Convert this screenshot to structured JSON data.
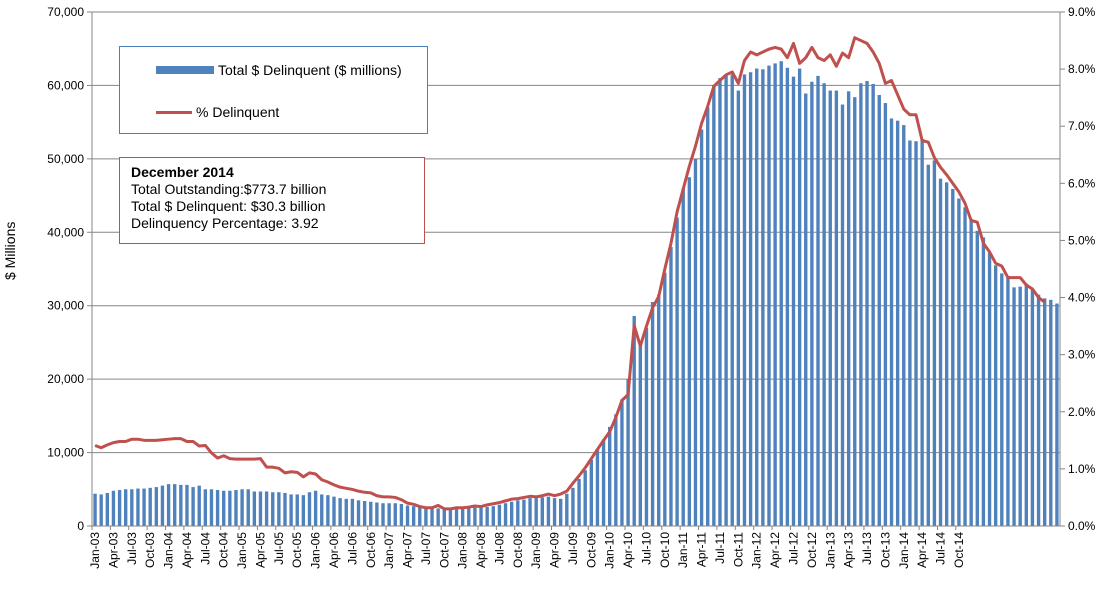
{
  "chart_data": {
    "type": "bar-line combo",
    "ylabel": "$ Millions",
    "ylim": [
      0,
      70000
    ],
    "y2lim": [
      0,
      9.0
    ],
    "yticks": [
      "0",
      "10,000",
      "20,000",
      "30,000",
      "40,000",
      "50,000",
      "60,000",
      "70,000"
    ],
    "y2ticks": [
      "0.0%",
      "1.0%",
      "2.0%",
      "3.0%",
      "4.0%",
      "5.0%",
      "6.0%",
      "7.0%",
      "8.0%",
      "9.0%"
    ],
    "xticks": [
      "Jan-03",
      "Apr-03",
      "Jul-03",
      "Oct-03",
      "Jan-04",
      "Apr-04",
      "Jul-04",
      "Oct-04",
      "Jan-05",
      "Apr-05",
      "Jul-05",
      "Oct-05",
      "Jan-06",
      "Apr-06",
      "Jul-06",
      "Oct-06",
      "Jan-07",
      "Apr-07",
      "Jul-07",
      "Oct-07",
      "Jan-08",
      "Apr-08",
      "Jul-08",
      "Oct-08",
      "Jan-09",
      "Apr-09",
      "Jul-09",
      "Oct-09",
      "Jan-10",
      "Apr-10",
      "Jul-10",
      "Oct-10",
      "Jan-11",
      "Apr-11",
      "Jul-11",
      "Oct-11",
      "Jan-12",
      "Apr-12",
      "Jul-12",
      "Oct-12",
      "Jan-13",
      "Apr-13",
      "Jul-13",
      "Oct-13",
      "Jan-14",
      "Apr-14",
      "Jul-14",
      "Oct-14"
    ],
    "x_start": "Jan-03",
    "grid": true,
    "series": [
      {
        "name": "Total $ Delinquent ($ millions)",
        "type": "bar",
        "axis": "left",
        "color": "#4f81bd",
        "values": [
          4400,
          4300,
          4500,
          4800,
          4900,
          5000,
          5000,
          5100,
          5100,
          5200,
          5300,
          5500,
          5700,
          5700,
          5600,
          5600,
          5300,
          5500,
          5000,
          5000,
          4900,
          4800,
          4800,
          4900,
          5000,
          5000,
          4700,
          4700,
          4700,
          4600,
          4600,
          4500,
          4300,
          4300,
          4200,
          4600,
          4800,
          4300,
          4200,
          4000,
          3800,
          3700,
          3700,
          3500,
          3400,
          3300,
          3200,
          3100,
          3100,
          3100,
          3000,
          2800,
          2700,
          2600,
          2500,
          2400,
          2400,
          2400,
          2400,
          2500,
          2400,
          2400,
          2500,
          2500,
          2600,
          2700,
          2900,
          3100,
          3300,
          3500,
          3600,
          3800,
          3800,
          3900,
          4000,
          3800,
          3700,
          4400,
          5200,
          6400,
          7600,
          9000,
          10500,
          11800,
          13500,
          15200,
          17200,
          20000,
          28600,
          24500,
          27000,
          30500,
          31500,
          34500,
          38000,
          42000,
          46000,
          47500,
          50000,
          54000,
          57000,
          60000,
          61000,
          61500,
          61500,
          59300,
          61500,
          61800,
          62300,
          62200,
          62700,
          63000,
          63300,
          62400,
          61200,
          62300,
          58900,
          60500,
          61300,
          60300,
          59300,
          59300,
          57400,
          59200,
          58400,
          60300,
          60600,
          60200,
          58700,
          57600,
          55500,
          55200,
          54600,
          52500,
          52400,
          52700,
          49200,
          49800,
          47300,
          46800,
          45900,
          44600,
          43400,
          41800,
          40200,
          39300,
          37200,
          35500,
          34400,
          34000,
          32500,
          32600,
          33000,
          32200,
          31500,
          31000,
          30800,
          30300
        ]
      },
      {
        "name": "% Delinquent",
        "type": "line",
        "axis": "right",
        "color": "#c0504d",
        "values": [
          1.41,
          1.37,
          1.42,
          1.46,
          1.48,
          1.48,
          1.52,
          1.52,
          1.5,
          1.5,
          1.5,
          1.51,
          1.52,
          1.53,
          1.53,
          1.48,
          1.48,
          1.4,
          1.41,
          1.28,
          1.19,
          1.23,
          1.18,
          1.17,
          1.17,
          1.17,
          1.17,
          1.18,
          1.03,
          1.03,
          1.01,
          0.93,
          0.95,
          0.94,
          0.86,
          0.93,
          0.91,
          0.81,
          0.77,
          0.72,
          0.68,
          0.66,
          0.64,
          0.61,
          0.59,
          0.58,
          0.53,
          0.51,
          0.51,
          0.5,
          0.46,
          0.4,
          0.38,
          0.34,
          0.32,
          0.32,
          0.36,
          0.3,
          0.3,
          0.32,
          0.32,
          0.33,
          0.35,
          0.34,
          0.37,
          0.39,
          0.41,
          0.44,
          0.47,
          0.48,
          0.5,
          0.52,
          0.51,
          0.53,
          0.56,
          0.53,
          0.56,
          0.61,
          0.75,
          0.88,
          1.02,
          1.18,
          1.34,
          1.5,
          1.65,
          1.9,
          2.2,
          2.3,
          3.51,
          3.15,
          3.5,
          3.82,
          4.02,
          4.5,
          4.95,
          5.5,
          5.9,
          6.3,
          6.65,
          7.05,
          7.35,
          7.7,
          7.8,
          7.9,
          7.95,
          7.75,
          8.15,
          8.3,
          8.25,
          8.3,
          8.35,
          8.38,
          8.35,
          8.2,
          8.45,
          8.1,
          8.2,
          8.38,
          8.2,
          8.15,
          8.25,
          8.05,
          8.28,
          8.2,
          8.55,
          8.5,
          8.45,
          8.3,
          8.1,
          7.75,
          7.8,
          7.55,
          7.3,
          7.2,
          7.2,
          6.75,
          6.72,
          6.45,
          6.28,
          6.15,
          6.0,
          5.85,
          5.65,
          5.35,
          5.32,
          4.95,
          4.8,
          4.6,
          4.55,
          4.35,
          4.35,
          4.35,
          4.22,
          4.15,
          4.0,
          3.92
        ]
      }
    ]
  },
  "legend": {
    "bar_label": "Total $ Delinquent ($ millions)",
    "line_label": "% Delinquent"
  },
  "info_box": {
    "title": "December 2014",
    "line1": "Total Outstanding:$773.7 billion",
    "line2": "Total $ Delinquent:  $30.3 billion",
    "line3": "Delinquency Percentage: 3.92"
  }
}
